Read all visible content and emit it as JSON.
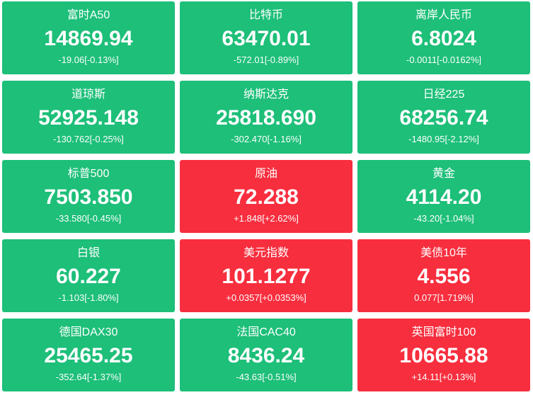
{
  "tiles": [
    {
      "name": "富时A50",
      "price": "14869.94",
      "change": "-19.06[-0.13%]",
      "color": "#1dbf79"
    },
    {
      "name": "比特币",
      "price": "63470.01",
      "change": "-572.01[-0.89%]",
      "color": "#1dbf79"
    },
    {
      "name": "离岸人民币",
      "price": "6.8024",
      "change": "-0.0011[-0.0162%]",
      "color": "#1dbf79"
    },
    {
      "name": "道琼斯",
      "price": "52925.148",
      "change": "-130.762[-0.25%]",
      "color": "#1dbf79"
    },
    {
      "name": "纳斯达克",
      "price": "25818.690",
      "change": "-302.470[-1.16%]",
      "color": "#1dbf79"
    },
    {
      "name": "日经225",
      "price": "68256.74",
      "change": "-1480.95[-2.12%]",
      "color": "#1dbf79"
    },
    {
      "name": "标普500",
      "price": "7503.850",
      "change": "-33.580[-0.45%]",
      "color": "#1dbf79"
    },
    {
      "name": "原油",
      "price": "72.288",
      "change": "+1.848[+2.62%]",
      "color": "#f72e3e"
    },
    {
      "name": "黄金",
      "price": "4114.20",
      "change": "-43.20[-1.04%]",
      "color": "#1dbf79"
    },
    {
      "name": "白银",
      "price": "60.227",
      "change": "-1.103[-1.80%]",
      "color": "#1dbf79"
    },
    {
      "name": "美元指数",
      "price": "101.1277",
      "change": "+0.0357[+0.0353%]",
      "color": "#f72e3e"
    },
    {
      "name": "美债10年",
      "price": "4.556",
      "change": "0.077[1.719%]",
      "color": "#f72e3e"
    },
    {
      "name": "德国DAX30",
      "price": "25465.25",
      "change": "-352.64[-1.37%]",
      "color": "#1dbf79"
    },
    {
      "name": "法国CAC40",
      "price": "8436.24",
      "change": "-43.63[-0.51%]",
      "color": "#1dbf79"
    },
    {
      "name": "英国富时100",
      "price": "10665.88",
      "change": "+14.11[+0.13%]",
      "color": "#f72e3e"
    }
  ]
}
